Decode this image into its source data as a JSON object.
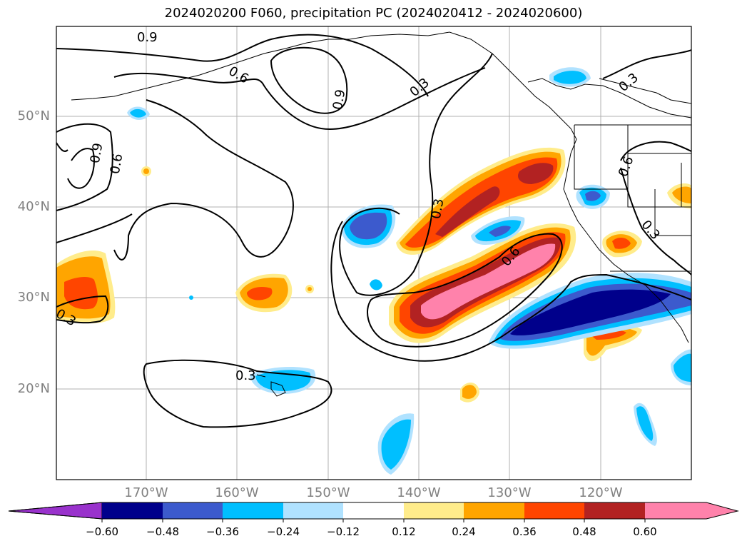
{
  "title": "2024020200 F060, precipitation PC (2024020412 - 2024020600)",
  "map": {
    "region": "North Pacific / Western North America",
    "projection": "cylindrical",
    "lon_range": [
      -180,
      -110
    ],
    "lat_range": [
      10,
      60
    ],
    "grid": true,
    "lat_ticks": [
      "50°N",
      "40°N",
      "30°N",
      "20°N"
    ],
    "lon_ticks": [
      "170°W",
      "160°W",
      "150°W",
      "140°W",
      "130°W",
      "120°W"
    ],
    "contour_labels": [
      "0.9",
      "0.6",
      "0.9",
      "0.9",
      "0.6",
      "0.3",
      "0.3",
      "0.6",
      "0.3",
      "0.3",
      "0.6",
      "0.3",
      "0.3"
    ]
  },
  "colorbar": {
    "tick_labels": [
      "−0.60",
      "−0.48",
      "−0.36",
      "−0.24",
      "−0.12",
      "0.12",
      "0.24",
      "0.36",
      "0.48",
      "0.60"
    ],
    "levels": [
      -0.6,
      -0.48,
      -0.36,
      -0.24,
      -0.12,
      0.12,
      0.24,
      0.36,
      0.48,
      0.6
    ],
    "colors": [
      "#9932cc",
      "#00008b",
      "#3c5acd",
      "#00bfff",
      "#b0e2ff",
      "#ffffff",
      "#ffec8b",
      "#ffa500",
      "#ff4500",
      "#b22222",
      "#ff82ab",
      "#ff82ab"
    ],
    "extend": "both"
  }
}
